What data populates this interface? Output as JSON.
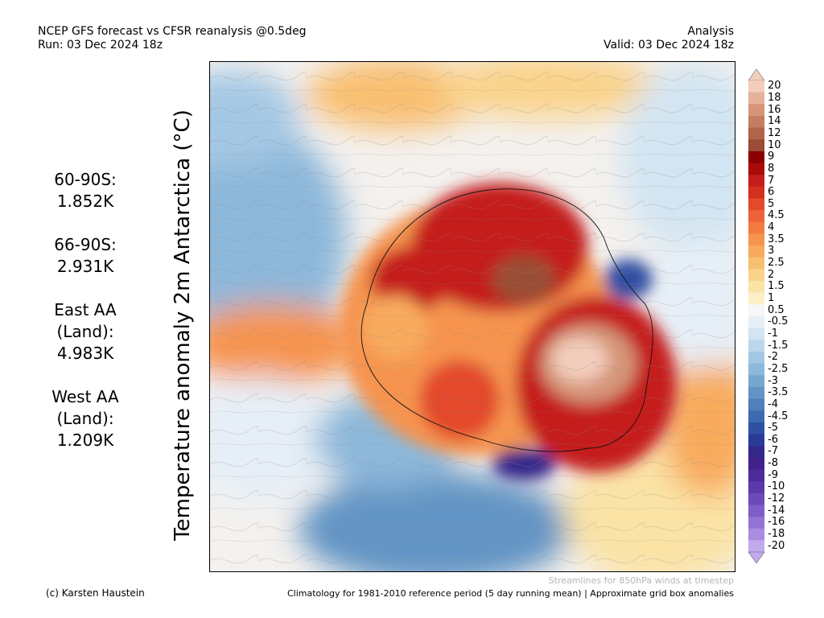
{
  "header": {
    "title_line1": "NCEP GFS forecast vs CFSR reanalysis @0.5deg",
    "title_line2": "Run: 03 Dec 2024 18z",
    "right_line1": "Analysis",
    "right_line2": "Valid: 03 Dec 2024 18z"
  },
  "axis_title": "Temperature anomaly 2m Antarctica (°C)",
  "stats": [
    {
      "label": "60-90S:",
      "value": "1.852K"
    },
    {
      "label": "66-90S:",
      "value": "2.931K"
    },
    {
      "label": "East AA\n(Land):",
      "value": "4.983K"
    },
    {
      "label": "West AA\n(Land):",
      "value": "1.209K"
    }
  ],
  "colorbar": {
    "labels": [
      "20",
      "18",
      "16",
      "14",
      "12",
      "10",
      "9",
      "8",
      "7",
      "6",
      "5",
      "4.5",
      "4",
      "3.5",
      "3",
      "2.5",
      "2",
      "1.5",
      "1",
      "0.5",
      "-0.5",
      "-1",
      "-1.5",
      "-2",
      "-2.5",
      "-3",
      "-3.5",
      "-4",
      "-4.5",
      "-5",
      "-6",
      "-7",
      "-8",
      "-9",
      "-10",
      "-12",
      "-14",
      "-16",
      "-18",
      "-20"
    ],
    "colors": [
      "#f3cdbb",
      "#e6b09a",
      "#d69579",
      "#c57c60",
      "#b0644a",
      "#9a4d36",
      "#8b0000",
      "#a90a0a",
      "#c51d1d",
      "#d5301f",
      "#e34a2a",
      "#ed6238",
      "#f37b42",
      "#f6944f",
      "#f8ab5d",
      "#f9bf71",
      "#fad38a",
      "#fbe3a6",
      "#fbefc8",
      "#f7f7f7",
      "#e6eff7",
      "#d3e5f2",
      "#bcd7ec",
      "#a4c8e4",
      "#8db8da",
      "#77a7d0",
      "#6294c5",
      "#4f80bb",
      "#3e6bb0",
      "#3050a3",
      "#2a3b96",
      "#31288a",
      "#40228a",
      "#4d2b99",
      "#5c39a9",
      "#6c4ab8",
      "#7e5ec7",
      "#9274d4",
      "#a88de0",
      "#c0aaeb"
    ]
  },
  "footer": {
    "stream_note": "Streamlines for 850hPa winds at timestep",
    "credit": "(c) Karsten Haustein",
    "climatology": "Climatology for 1981-2010 reference period (5 day running mean) | Approximate grid box anomalies"
  }
}
